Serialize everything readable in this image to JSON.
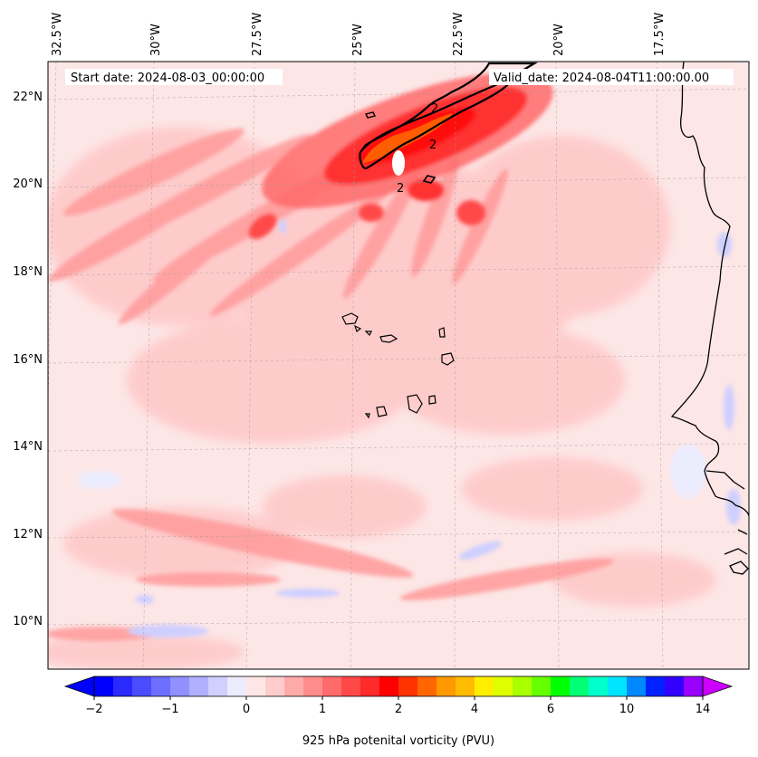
{
  "header": {
    "start_date": "Start date: 2024-08-03_00:00:00",
    "valid_date": "Valid_date: 2024-08-04T11:00:00.00"
  },
  "map": {
    "lon_labels": [
      "32.5°W",
      "30°W",
      "27.5°W",
      "25°W",
      "22.5°W",
      "20°W",
      "17.5°W"
    ],
    "lat_labels": [
      "22°N",
      "20°N",
      "18°N",
      "16°N",
      "14°N",
      "12°N",
      "10°N"
    ],
    "contour_label": "2",
    "field_background_color": "#fde6e6",
    "coastline_color": "#000000"
  },
  "colorbar": {
    "title": "925 hPa potenital vorticity (PVU)",
    "tick_labels": [
      "−2",
      "−1",
      "0",
      "1",
      "2",
      "4",
      "6",
      "10",
      "14"
    ],
    "colors": [
      "#0000ff",
      "#2a2aff",
      "#4c4cff",
      "#6e6eff",
      "#9090ff",
      "#b0b0ff",
      "#d0d0ff",
      "#ececff",
      "#ffe6e6",
      "#ffcccc",
      "#ffaaaa",
      "#ff8c8c",
      "#ff6a6a",
      "#ff4848",
      "#ff2a2a",
      "#ff0000",
      "#ff3300",
      "#ff6600",
      "#ff9900",
      "#ffbb00",
      "#ffee00",
      "#ddff00",
      "#aaff00",
      "#66ff00",
      "#00ff00",
      "#00ff77",
      "#00ffcc",
      "#00e5ff",
      "#0088ff",
      "#0022ff",
      "#3300ff",
      "#9900ff"
    ],
    "under_color": "#0000ff",
    "over_color": "#cc00ff"
  }
}
